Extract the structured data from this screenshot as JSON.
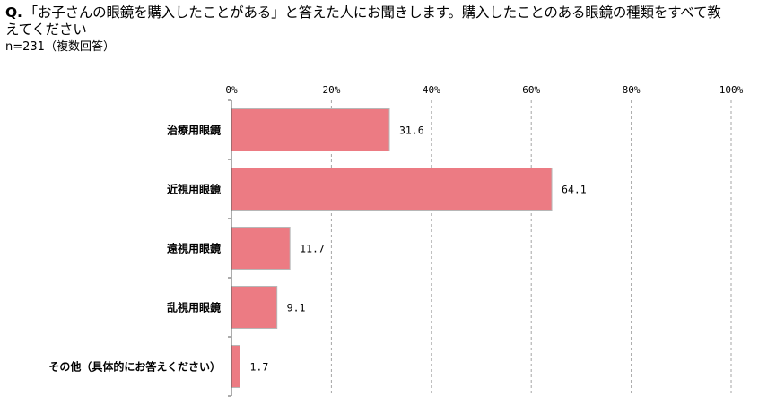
{
  "question": {
    "prefix": "Q.",
    "text": "「お子さんの眼鏡を購入したことがある」と答えた人にお聞きします。購入したことのある眼鏡の種類をすべて教えてください"
  },
  "sample_size": "n=231（複数回答）",
  "colors": {
    "bar_fill": "#ec7b83",
    "bar_stroke": "#b7b7b7",
    "grid": "#a6a6a6",
    "axis": "#595959"
  },
  "chart_data": {
    "type": "bar",
    "orientation": "horizontal",
    "title": "",
    "xlabel": "",
    "ylabel": "",
    "xlim": [
      0,
      100
    ],
    "x_ticks": [
      0,
      20,
      40,
      60,
      80,
      100
    ],
    "x_tick_labels": [
      "0%",
      "20%",
      "40%",
      "60%",
      "80%",
      "100%"
    ],
    "grid": true,
    "grid_style": "dashed",
    "categories": [
      "治療用眼鏡",
      "近視用眼鏡",
      "遠視用眼鏡",
      "乱視用眼鏡",
      "その他（具体的にお答えください）"
    ],
    "values": [
      31.6,
      64.1,
      11.7,
      9.1,
      1.7
    ],
    "value_labels": [
      "31.6",
      "64.1",
      "11.7",
      "9.1",
      "1.7"
    ]
  }
}
